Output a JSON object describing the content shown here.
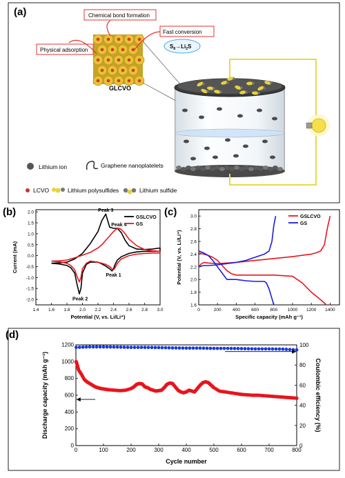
{
  "panel_a": {
    "label": "(a)",
    "callouts": {
      "chemical_bond": "Chemical bond formation",
      "physical_adsorption": "Physical adsorption",
      "fast_conversion": "Fast conversion"
    },
    "reaction": {
      "s8": "S",
      "s8_sub": "8",
      "arrow": "→",
      "li": "Li",
      "li_sub": "2",
      "s": "S"
    },
    "material": "GLCVO",
    "legend": {
      "lithium_ion": "Lithium ion",
      "graphene": "Graphene nanoplatelets",
      "lcvo": "LCVO",
      "polysulfides": "Lithium polysulfides",
      "sulfide": "Lithium sulfide"
    },
    "colors": {
      "grain": "#e8c236",
      "grain_core": "#d23c1e",
      "callout_border": "#e53030",
      "wire": "#e8d84a",
      "bulb": "#f5e04a"
    }
  },
  "chart_data": [
    {
      "panel": "(b)",
      "type": "line",
      "xlabel": "Potential (V, vs. Li/Li⁺)",
      "ylabel": "Current (mA)",
      "xlim": [
        1.4,
        3.0
      ],
      "ylim": [
        -2.25,
        2.1
      ],
      "xticks": [
        "1.4",
        "1.6",
        "1.8",
        "2.0",
        "2.2",
        "2.4",
        "2.6",
        "2.8",
        "3.0"
      ],
      "yticks": [
        "-2.0",
        "-1.5",
        "-1.0",
        "-0.5",
        "0.0",
        "0.5",
        "1.0",
        "1.5",
        "2.0"
      ],
      "annotations": [
        "Peak 3",
        "Peak 4",
        "Peak 1",
        "Peak 2"
      ],
      "legend_position": "top-right",
      "series": [
        {
          "name": "GSLCVO",
          "color": "#000000",
          "x": [
            1.6,
            1.7,
            1.8,
            1.85,
            1.9,
            1.93,
            1.96,
            1.98,
            2.0,
            2.05,
            2.1,
            2.2,
            2.25,
            2.3,
            2.35,
            2.38,
            2.4,
            2.42,
            2.45,
            2.5,
            2.6,
            2.7,
            2.8,
            2.9,
            3.0,
            3.0,
            2.9,
            2.8,
            2.7,
            2.6,
            2.55,
            2.5,
            2.45,
            2.4,
            2.35,
            2.3,
            2.25,
            2.2,
            2.1,
            2.0,
            1.9,
            1.8,
            1.7,
            1.6
          ],
          "y": [
            -0.35,
            -0.38,
            -0.45,
            -0.55,
            -0.8,
            -1.3,
            -1.75,
            -1.5,
            -0.8,
            -0.4,
            -0.3,
            -0.3,
            -0.38,
            -0.48,
            -0.6,
            -0.7,
            -0.6,
            -0.4,
            -0.2,
            -0.05,
            0.1,
            0.17,
            0.2,
            0.2,
            0.2,
            0.35,
            0.3,
            0.28,
            0.3,
            0.45,
            0.7,
            1.05,
            1.25,
            1.25,
            1.3,
            1.9,
            1.6,
            1.1,
            0.55,
            0.1,
            -0.15,
            -0.3,
            -0.33,
            -0.35
          ]
        },
        {
          "name": "GS",
          "color": "#e8141c",
          "x": [
            1.6,
            1.7,
            1.8,
            1.85,
            1.9,
            1.93,
            1.96,
            1.98,
            2.0,
            2.05,
            2.1,
            2.2,
            2.3,
            2.35,
            2.38,
            2.4,
            2.42,
            2.45,
            2.5,
            2.6,
            2.7,
            2.8,
            2.9,
            3.0,
            3.0,
            2.9,
            2.8,
            2.7,
            2.6,
            2.55,
            2.5,
            2.47,
            2.45,
            2.4,
            2.35,
            2.3,
            2.25,
            2.2,
            2.1,
            2.0,
            1.9,
            1.8,
            1.7,
            1.6
          ],
          "y": [
            -0.25,
            -0.28,
            -0.35,
            -0.45,
            -0.65,
            -0.95,
            -1.2,
            -1.0,
            -0.6,
            -0.35,
            -0.25,
            -0.3,
            -0.4,
            -0.5,
            -0.6,
            -0.65,
            -0.55,
            -0.35,
            -0.15,
            0.0,
            0.07,
            0.1,
            0.12,
            0.12,
            0.2,
            0.22,
            0.28,
            0.45,
            0.75,
            1.0,
            1.2,
            1.25,
            1.25,
            1.1,
            0.9,
            0.7,
            0.5,
            0.35,
            0.15,
            0.02,
            -0.1,
            -0.2,
            -0.24,
            -0.25
          ]
        }
      ]
    },
    {
      "panel": "(c)",
      "type": "line",
      "xlabel": "Specific capacity (mAh g⁻¹)",
      "ylabel": "Potential (V, vs. Li/Li⁺)",
      "xlim": [
        0,
        1500
      ],
      "ylim": [
        1.6,
        3.1
      ],
      "xticks": [
        "0",
        "200",
        "400",
        "600",
        "800",
        "1000",
        "1200",
        "1400"
      ],
      "yticks": [
        "1.6",
        "1.8",
        "2.0",
        "2.2",
        "2.4",
        "2.6",
        "2.8",
        "3.0"
      ],
      "legend_position": "top-right",
      "series": [
        {
          "name": "GSLCVO",
          "role": "discharge",
          "color": "#e8141c",
          "x": [
            0,
            50,
            100,
            150,
            200,
            250,
            300,
            350,
            400,
            500,
            600,
            700,
            800,
            900,
            1000,
            1100,
            1200,
            1300,
            1360
          ],
          "y": [
            2.42,
            2.4,
            2.38,
            2.35,
            2.3,
            2.22,
            2.14,
            2.09,
            2.07,
            2.07,
            2.07,
            2.07,
            2.07,
            2.06,
            2.05,
            1.95,
            1.8,
            1.68,
            1.6
          ]
        },
        {
          "name": "GSLCVO",
          "role": "charge",
          "color": "#e8141c",
          "x": [
            0,
            30,
            60,
            100,
            200,
            300,
            400,
            600,
            800,
            1000,
            1100,
            1200,
            1250,
            1300,
            1340,
            1370,
            1400
          ],
          "y": [
            2.2,
            2.25,
            2.27,
            2.26,
            2.25,
            2.26,
            2.27,
            2.3,
            2.33,
            2.36,
            2.38,
            2.4,
            2.42,
            2.45,
            2.55,
            2.8,
            3.0
          ]
        },
        {
          "name": "GS",
          "role": "discharge",
          "color": "#1a1ae0",
          "x": [
            0,
            50,
            100,
            150,
            200,
            250,
            300,
            400,
            500,
            600,
            700,
            720,
            750,
            780,
            800
          ],
          "y": [
            2.45,
            2.42,
            2.38,
            2.3,
            2.2,
            2.1,
            2.0,
            2.0,
            1.98,
            1.97,
            1.97,
            1.95,
            1.85,
            1.7,
            1.6
          ]
        },
        {
          "name": "GS",
          "role": "charge",
          "color": "#1a1ae0",
          "x": [
            0,
            50,
            100,
            200,
            300,
            400,
            500,
            600,
            700,
            750,
            780,
            800,
            820
          ],
          "y": [
            2.2,
            2.22,
            2.22,
            2.23,
            2.25,
            2.27,
            2.3,
            2.35,
            2.4,
            2.45,
            2.6,
            2.85,
            3.0
          ]
        }
      ]
    },
    {
      "panel": "(d)",
      "type": "scatter",
      "xlabel": "Cycle number",
      "ylabel": "Discharge capacity (mAh g⁻¹)",
      "y2label": "Coulombic efficiency (%)",
      "xlim": [
        0,
        800
      ],
      "ylim": [
        0,
        1200
      ],
      "y2lim": [
        0,
        100
      ],
      "xticks": [
        "0",
        "100",
        "200",
        "300",
        "400",
        "500",
        "600",
        "700",
        "800"
      ],
      "yticks": [
        "0",
        "200",
        "400",
        "600",
        "800",
        "1000",
        "1200"
      ],
      "y2ticks": [
        "0",
        "20",
        "40",
        "60",
        "80",
        "100"
      ],
      "series": [
        {
          "name": "Discharge capacity",
          "axis": "left",
          "color": "#e8141c",
          "x": [
            1,
            5,
            10,
            20,
            30,
            40,
            50,
            60,
            70,
            80,
            90,
            100,
            110,
            120,
            140,
            160,
            180,
            200,
            210,
            220,
            230,
            240,
            250,
            260,
            270,
            280,
            290,
            300,
            310,
            320,
            330,
            340,
            350,
            360,
            370,
            380,
            390,
            400,
            410,
            420,
            430,
            440,
            450,
            460,
            470,
            480,
            490,
            500,
            520,
            540,
            560,
            580,
            600,
            620,
            640,
            660,
            680,
            700,
            720,
            740,
            760,
            780,
            800
          ],
          "y": [
            1000,
            960,
            900,
            850,
            790,
            760,
            740,
            720,
            700,
            690,
            680,
            675,
            670,
            665,
            660,
            655,
            660,
            680,
            700,
            730,
            740,
            735,
            700,
            690,
            670,
            660,
            650,
            655,
            660,
            690,
            730,
            745,
            740,
            700,
            660,
            640,
            630,
            640,
            660,
            650,
            640,
            680,
            720,
            750,
            760,
            750,
            720,
            690,
            650,
            640,
            630,
            620,
            610,
            605,
            600,
            600,
            595,
            590,
            585,
            580,
            575,
            570,
            565
          ]
        },
        {
          "name": "Coulombic efficiency",
          "axis": "right",
          "color": "#1a3ad8",
          "x": [
            1,
            50,
            100,
            150,
            200,
            250,
            300,
            350,
            400,
            450,
            500,
            550,
            600,
            650,
            700,
            750,
            800
          ],
          "y": [
            97.5,
            98,
            98,
            97.8,
            97.5,
            97.5,
            97.3,
            97,
            96.8,
            96.8,
            96.5,
            96.5,
            96.3,
            96,
            96,
            95.8,
            95
          ]
        }
      ]
    }
  ]
}
